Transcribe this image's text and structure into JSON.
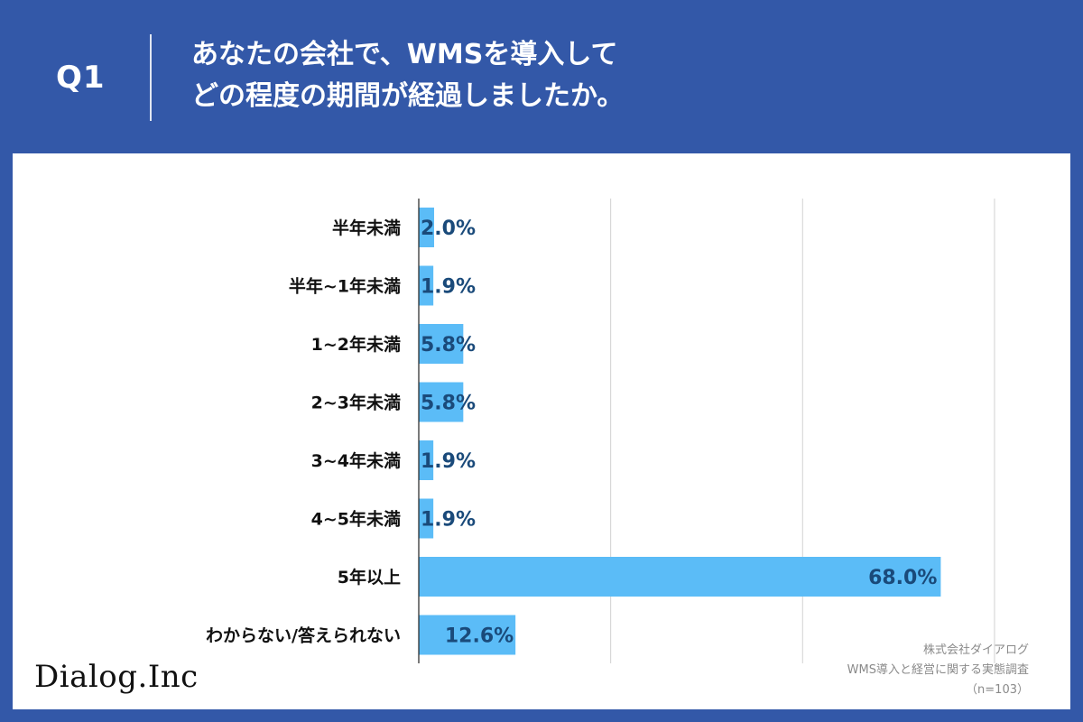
{
  "header": {
    "question_no": "Q1",
    "title_line1": "あなたの会社で、WMSを導入して",
    "title_line2": "どの程度の期間が経過しましたか。"
  },
  "chart_data": {
    "type": "bar",
    "orientation": "horizontal",
    "categories": [
      "半年未満",
      "半年~1年未満",
      "1~2年未満",
      "2~3年未満",
      "3~4年未満",
      "4~5年未満",
      "5年以上",
      "わからない/答えられない"
    ],
    "values": [
      2.0,
      1.9,
      5.8,
      5.8,
      1.9,
      1.9,
      68.0,
      12.6
    ],
    "value_labels": [
      "2.0%",
      "1.9%",
      "5.8%",
      "5.8%",
      "1.9%",
      "1.9%",
      "68.0%",
      "12.6%"
    ],
    "xlim": [
      0,
      85
    ],
    "grid": true,
    "bar_color": "#5bbcf7",
    "title": "",
    "xlabel": "",
    "ylabel": ""
  },
  "footer": {
    "logo_text": "Dialog.Inc",
    "source_company": "株式会社ダイアログ",
    "source_survey": "WMS導入と経営に関する実態調査",
    "sample_size": "（n=103）"
  }
}
